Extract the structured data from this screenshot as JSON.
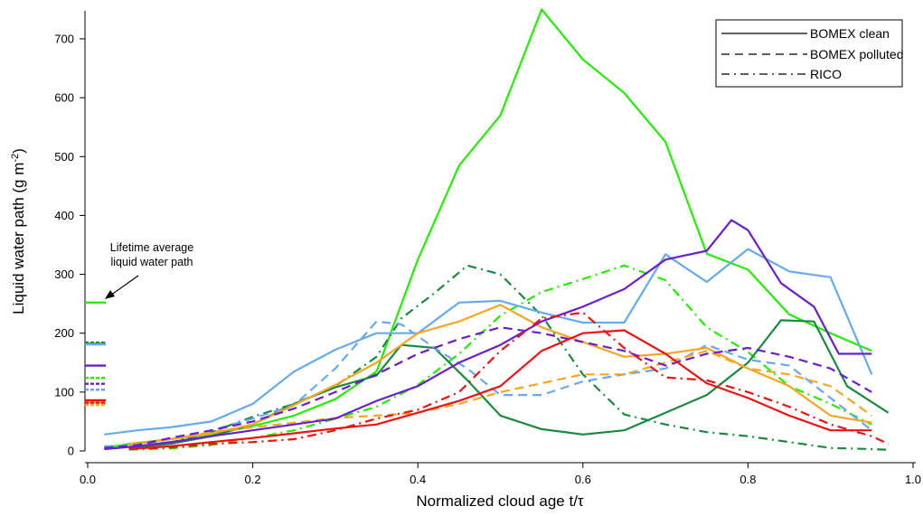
{
  "chart_data": {
    "type": "line",
    "xlabel": "Normalized cloud age t/τ",
    "ylabel": "Liquid water path (g m",
    "ylabel_unit_sup": "-2",
    "ylabel_close": ")",
    "xlim": [
      0.0,
      1.0
    ],
    "ylim": [
      0,
      750
    ],
    "x_ticks": [
      0.0,
      0.2,
      0.4,
      0.6,
      0.8,
      1.0
    ],
    "x_tick_labels": [
      "0.0",
      "0.2",
      "0.4",
      "0.6",
      "0.8",
      "1.0"
    ],
    "y_ticks": [
      0,
      100,
      200,
      300,
      400,
      500,
      600,
      700
    ],
    "y_tick_labels": [
      "0",
      "100",
      "200",
      "300",
      "400",
      "500",
      "600",
      "700"
    ],
    "grid": false,
    "legend_position": "top-right",
    "legend": [
      {
        "label": "BOMEX clean",
        "dash": "solid"
      },
      {
        "label": "BOMEX polluted",
        "dash": "dashed"
      },
      {
        "label": "RICO",
        "dash": "dashdot"
      }
    ],
    "annotation": {
      "lines": [
        "Lifetime average",
        "liquid water path"
      ],
      "points_to": 252
    },
    "series": [
      {
        "color": "#22ee00",
        "dash": "solid",
        "lifetime_avg": 252,
        "x": [
          0.02,
          0.05,
          0.1,
          0.15,
          0.2,
          0.25,
          0.3,
          0.35,
          0.4,
          0.45,
          0.5,
          0.55,
          0.6,
          0.65,
          0.7,
          0.75,
          0.8,
          0.85,
          0.9,
          0.95
        ],
        "y": [
          5,
          12,
          20,
          28,
          42,
          60,
          88,
          135,
          325,
          485,
          570,
          750,
          665,
          608,
          525,
          335,
          308,
          232,
          200,
          170
        ]
      },
      {
        "color": "#22ee00",
        "dash": "dashdot",
        "lifetime_avg": 124,
        "x": [
          0.05,
          0.1,
          0.15,
          0.2,
          0.25,
          0.3,
          0.35,
          0.4,
          0.45,
          0.5,
          0.55,
          0.6,
          0.65,
          0.7,
          0.75,
          0.8,
          0.85,
          0.9,
          0.95
        ],
        "y": [
          2,
          4,
          10,
          22,
          35,
          55,
          75,
          112,
          165,
          230,
          270,
          292,
          315,
          290,
          210,
          168,
          110,
          80,
          45
        ]
      },
      {
        "color": "#1a8a40",
        "dash": "solid",
        "lifetime_avg": 182,
        "x": [
          0.05,
          0.1,
          0.15,
          0.2,
          0.25,
          0.3,
          0.35,
          0.38,
          0.42,
          0.46,
          0.5,
          0.55,
          0.6,
          0.65,
          0.7,
          0.75,
          0.8,
          0.84,
          0.88,
          0.92,
          0.97
        ],
        "y": [
          5,
          12,
          25,
          45,
          80,
          108,
          128,
          180,
          175,
          120,
          60,
          37,
          28,
          35,
          65,
          95,
          150,
          222,
          220,
          110,
          65
        ]
      },
      {
        "color": "#1a8a40",
        "dash": "dashdot",
        "lifetime_avg": 184,
        "x": [
          0.05,
          0.1,
          0.15,
          0.2,
          0.25,
          0.3,
          0.35,
          0.38,
          0.42,
          0.46,
          0.5,
          0.55,
          0.6,
          0.65,
          0.7,
          0.75,
          0.8,
          0.85,
          0.9,
          0.95,
          0.97
        ],
        "y": [
          5,
          14,
          32,
          58,
          80,
          110,
          160,
          225,
          268,
          315,
          300,
          230,
          130,
          62,
          45,
          32,
          25,
          15,
          5,
          3,
          2
        ]
      },
      {
        "color": "#66aaee",
        "dash": "solid",
        "lifetime_avg": 181,
        "x": [
          0.02,
          0.06,
          0.1,
          0.15,
          0.2,
          0.25,
          0.3,
          0.35,
          0.4,
          0.45,
          0.5,
          0.55,
          0.6,
          0.65,
          0.7,
          0.75,
          0.8,
          0.85,
          0.9,
          0.95
        ],
        "y": [
          28,
          35,
          40,
          50,
          80,
          135,
          172,
          200,
          200,
          252,
          255,
          235,
          218,
          218,
          334,
          287,
          343,
          305,
          295,
          130
        ]
      },
      {
        "color": "#66aaee",
        "dash": "dashed",
        "lifetime_avg": 104,
        "x": [
          0.02,
          0.06,
          0.1,
          0.15,
          0.2,
          0.25,
          0.3,
          0.35,
          0.38,
          0.42,
          0.46,
          0.5,
          0.55,
          0.6,
          0.65,
          0.7,
          0.75,
          0.8,
          0.85,
          0.9,
          0.95
        ],
        "y": [
          8,
          10,
          20,
          35,
          55,
          78,
          140,
          220,
          215,
          175,
          140,
          95,
          95,
          118,
          130,
          140,
          180,
          155,
          145,
          90,
          35
        ]
      },
      {
        "color": "#f5a623",
        "dash": "solid",
        "lifetime_avg": 82,
        "x": [
          0.05,
          0.1,
          0.15,
          0.2,
          0.25,
          0.3,
          0.35,
          0.4,
          0.45,
          0.5,
          0.55,
          0.6,
          0.65,
          0.7,
          0.75,
          0.8,
          0.85,
          0.9,
          0.95
        ],
        "y": [
          10,
          20,
          30,
          45,
          78,
          112,
          150,
          200,
          220,
          248,
          210,
          185,
          160,
          165,
          175,
          140,
          110,
          60,
          48
        ]
      },
      {
        "color": "#f5a623",
        "dash": "dashed",
        "lifetime_avg": 78,
        "x": [
          0.05,
          0.1,
          0.15,
          0.2,
          0.25,
          0.3,
          0.35,
          0.4,
          0.45,
          0.5,
          0.55,
          0.6,
          0.65,
          0.7,
          0.75,
          0.8,
          0.85,
          0.9,
          0.95
        ],
        "y": [
          12,
          20,
          32,
          40,
          48,
          56,
          60,
          65,
          80,
          100,
          115,
          130,
          130,
          150,
          170,
          140,
          130,
          110,
          60
        ]
      },
      {
        "color": "#6a1fcc",
        "dash": "solid",
        "lifetime_avg": 145,
        "x": [
          0.02,
          0.06,
          0.1,
          0.15,
          0.2,
          0.25,
          0.3,
          0.35,
          0.4,
          0.45,
          0.5,
          0.55,
          0.6,
          0.65,
          0.7,
          0.75,
          0.78,
          0.8,
          0.84,
          0.88,
          0.91,
          0.95
        ],
        "y": [
          3,
          8,
          15,
          25,
          35,
          45,
          55,
          85,
          110,
          150,
          180,
          220,
          245,
          275,
          325,
          340,
          392,
          375,
          285,
          245,
          165,
          165
        ]
      },
      {
        "color": "#6a1fcc",
        "dash": "dashed",
        "lifetime_avg": 114,
        "x": [
          0.02,
          0.06,
          0.1,
          0.15,
          0.2,
          0.25,
          0.3,
          0.35,
          0.4,
          0.45,
          0.5,
          0.55,
          0.6,
          0.65,
          0.7,
          0.75,
          0.8,
          0.85,
          0.9,
          0.95
        ],
        "y": [
          5,
          10,
          22,
          35,
          50,
          72,
          100,
          130,
          165,
          190,
          210,
          200,
          185,
          170,
          145,
          165,
          175,
          160,
          140,
          100
        ]
      },
      {
        "color": "#ee1111",
        "dash": "solid",
        "lifetime_avg": 86,
        "x": [
          0.05,
          0.1,
          0.15,
          0.2,
          0.25,
          0.3,
          0.35,
          0.4,
          0.45,
          0.5,
          0.55,
          0.6,
          0.65,
          0.7,
          0.75,
          0.8,
          0.85,
          0.9,
          0.95
        ],
        "y": [
          3,
          8,
          15,
          22,
          30,
          38,
          45,
          65,
          85,
          110,
          170,
          200,
          205,
          165,
          115,
          90,
          60,
          35,
          35
        ]
      },
      {
        "color": "#ee1111",
        "dash": "dashdot",
        "lifetime_avg": 82,
        "x": [
          0.05,
          0.1,
          0.15,
          0.2,
          0.25,
          0.3,
          0.35,
          0.4,
          0.45,
          0.5,
          0.55,
          0.6,
          0.65,
          0.7,
          0.75,
          0.8,
          0.85,
          0.9,
          0.95,
          0.97
        ],
        "y": [
          3,
          6,
          12,
          15,
          20,
          35,
          55,
          70,
          100,
          170,
          225,
          235,
          175,
          125,
          120,
          100,
          75,
          45,
          25,
          12
        ]
      }
    ]
  }
}
